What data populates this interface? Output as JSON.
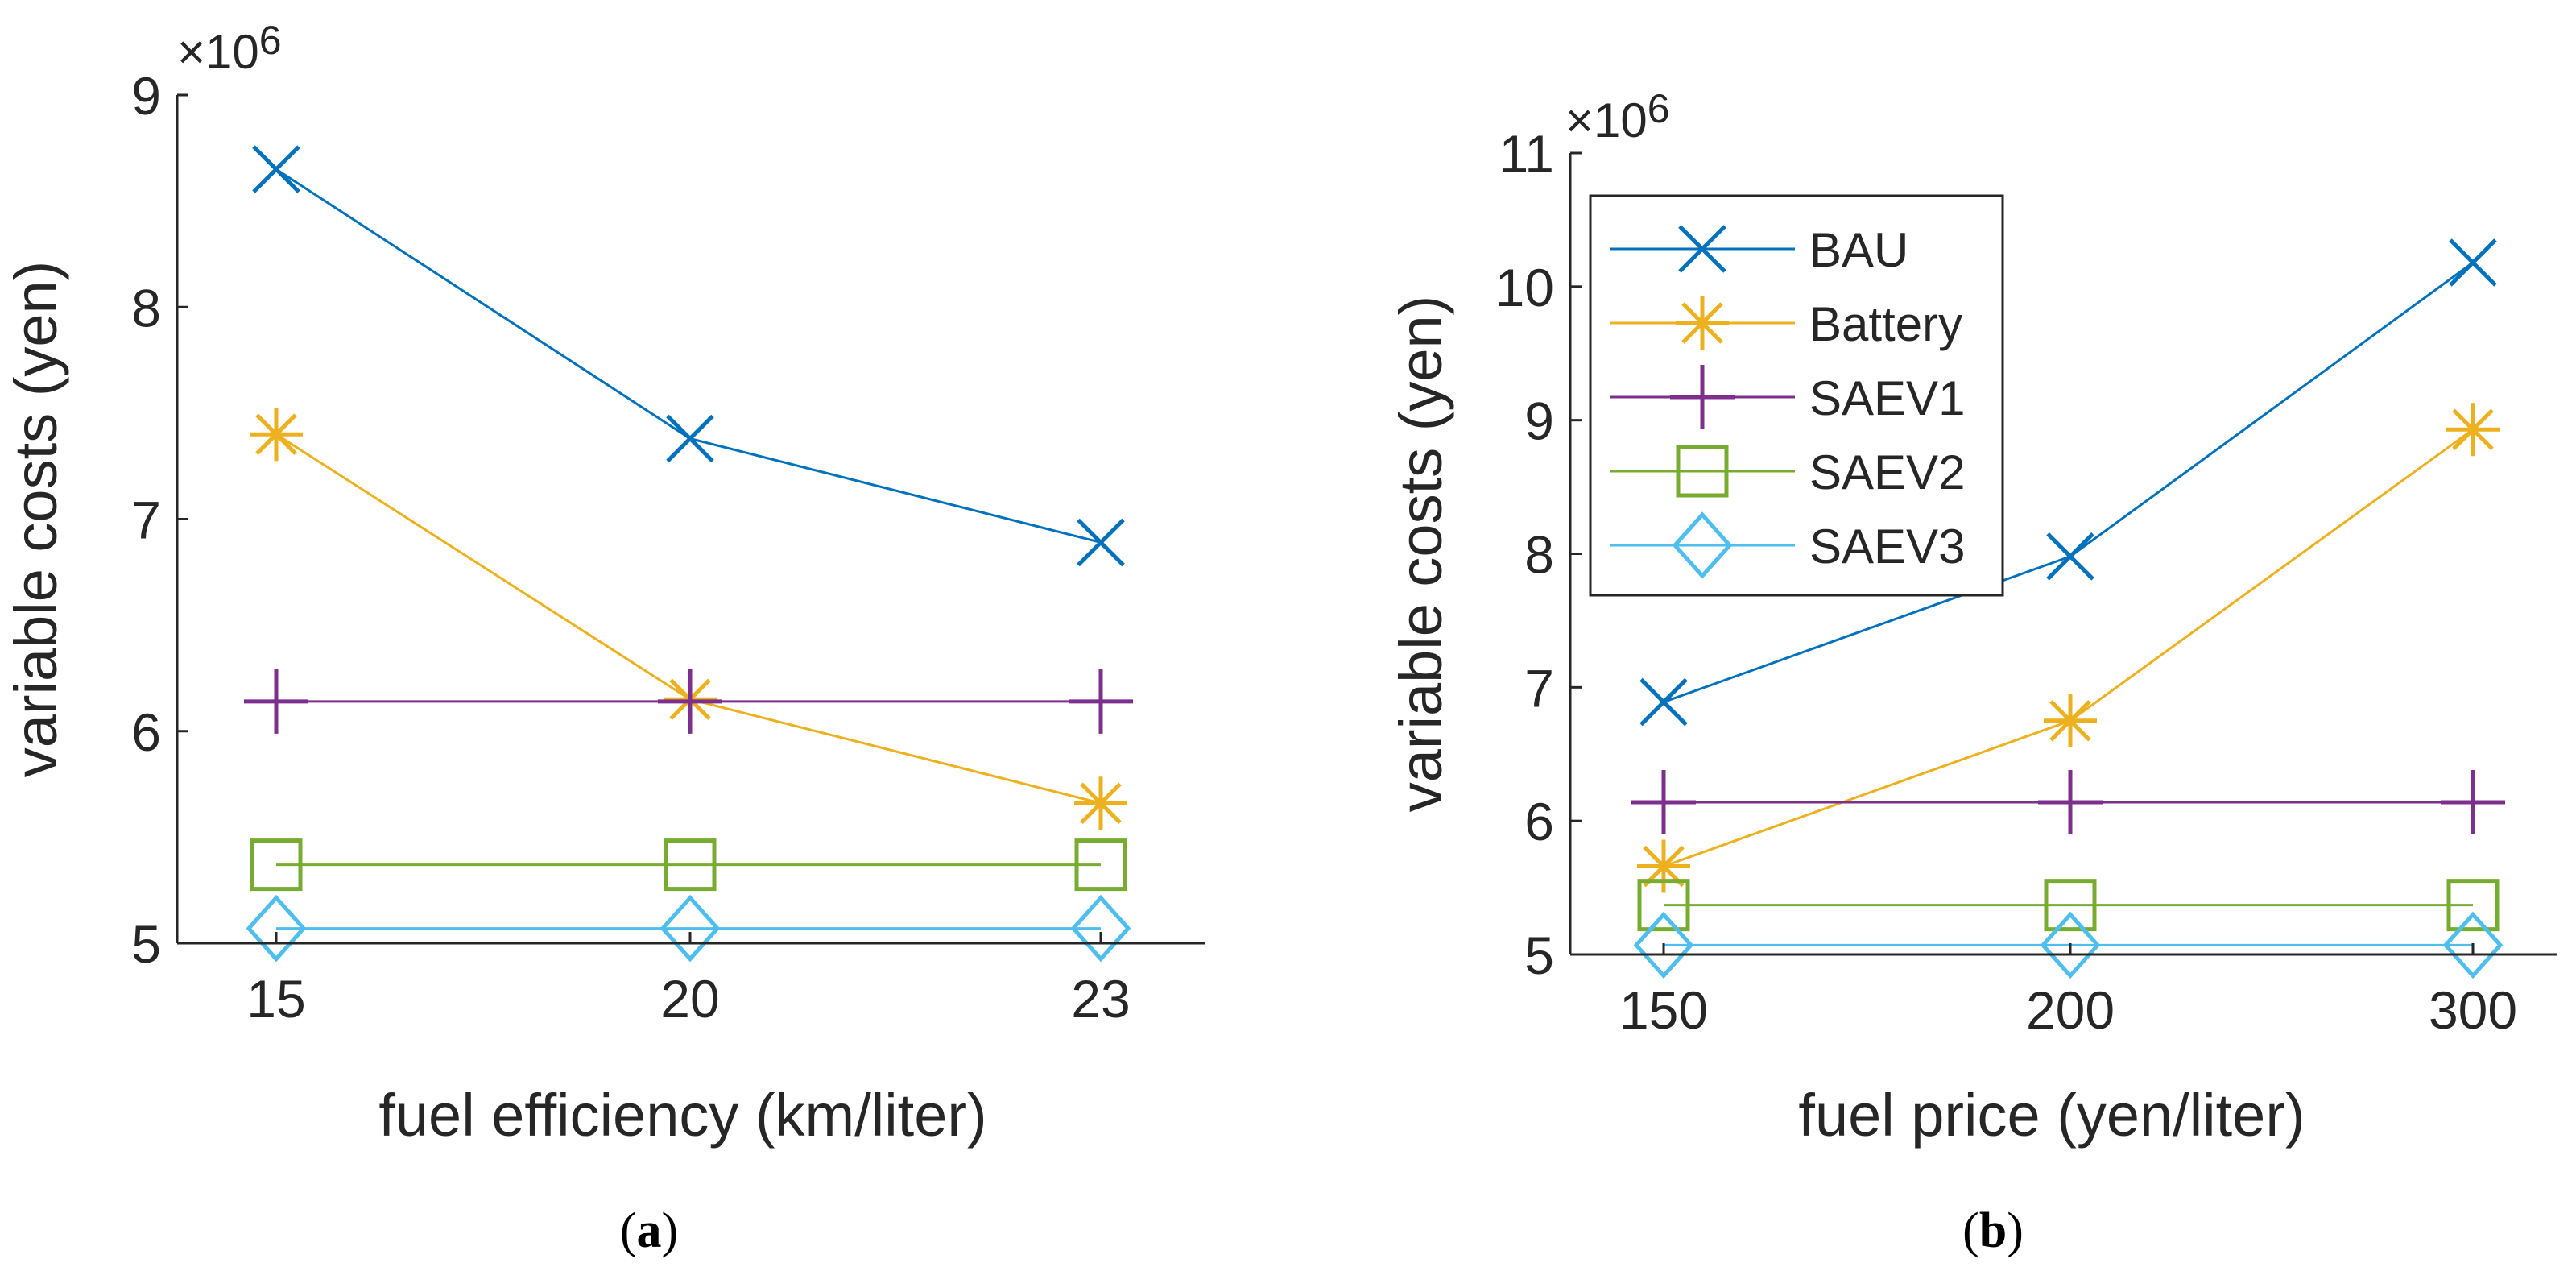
{
  "legend_entries": [
    {
      "name": "BAU",
      "color": "#0072BD",
      "marker": "x"
    },
    {
      "name": "Battery",
      "color": "#EDB120",
      "marker": "asterisk"
    },
    {
      "name": "SAEV1",
      "color": "#7E2F8E",
      "marker": "plus"
    },
    {
      "name": "SAEV2",
      "color": "#77AC30",
      "marker": "square"
    },
    {
      "name": "SAEV3",
      "color": "#4DBEEE",
      "marker": "diamond"
    }
  ],
  "chart_data": [
    {
      "type": "line",
      "panel_label": "(a)",
      "panel_letter": "a",
      "xlabel": "fuel efficiency (km/liter)",
      "ylabel": "variable costs (yen)",
      "y_exponent_label": "×10",
      "y_exponent": "6",
      "x": [
        15,
        20,
        23
      ],
      "x_tick_labels": [
        "15",
        "20",
        "23"
      ],
      "ylim": [
        5,
        9
      ],
      "y_ticks": [
        5,
        6,
        7,
        8,
        9
      ],
      "y_tick_labels": [
        "5",
        "6",
        "7",
        "8",
        "9"
      ],
      "series": [
        {
          "name": "BAU",
          "values": [
            8.65,
            7.38,
            6.89
          ]
        },
        {
          "name": "Battery",
          "values": [
            7.4,
            6.15,
            5.66
          ]
        },
        {
          "name": "SAEV1",
          "values": [
            6.14,
            6.14,
            6.14
          ]
        },
        {
          "name": "SAEV2",
          "values": [
            5.37,
            5.37,
            5.37
          ]
        },
        {
          "name": "SAEV3",
          "values": [
            5.07,
            5.07,
            5.07
          ]
        }
      ],
      "legend": false
    },
    {
      "type": "line",
      "panel_label": "(b)",
      "panel_letter": "b",
      "xlabel": "fuel price (yen/liter)",
      "ylabel": "variable costs (yen)",
      "y_exponent_label": "×10",
      "y_exponent": "6",
      "x": [
        150,
        200,
        300
      ],
      "x_tick_labels": [
        "150",
        "200",
        "300"
      ],
      "ylim": [
        5,
        11
      ],
      "y_ticks": [
        5,
        6,
        7,
        8,
        9,
        10,
        11
      ],
      "y_tick_labels": [
        "5",
        "6",
        "7",
        "8",
        "9",
        "10",
        "11"
      ],
      "series": [
        {
          "name": "BAU",
          "values": [
            6.89,
            7.98,
            10.18
          ]
        },
        {
          "name": "Battery",
          "values": [
            5.66,
            6.75,
            8.93
          ]
        },
        {
          "name": "SAEV1",
          "values": [
            6.14,
            6.14,
            6.14
          ]
        },
        {
          "name": "SAEV2",
          "values": [
            5.37,
            5.37,
            5.37
          ]
        },
        {
          "name": "SAEV3",
          "values": [
            5.07,
            5.07,
            5.07
          ]
        }
      ],
      "legend": true,
      "legend_position": "top-left"
    }
  ]
}
